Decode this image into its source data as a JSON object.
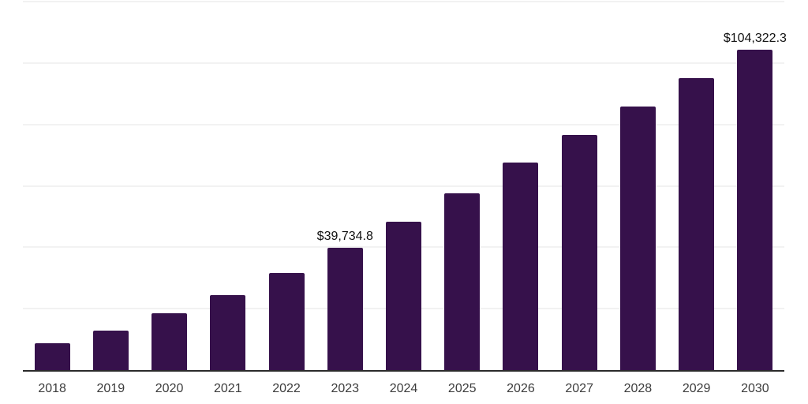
{
  "chart_data": {
    "type": "bar",
    "title": "",
    "xlabel": "",
    "ylabel": "",
    "categories": [
      "2018",
      "2019",
      "2020",
      "2021",
      "2022",
      "2023",
      "2024",
      "2025",
      "2026",
      "2027",
      "2028",
      "2029",
      "2030"
    ],
    "values": [
      8700,
      12800,
      18400,
      24300,
      31700,
      39734.8,
      48300,
      57500,
      67500,
      76500,
      85700,
      95100,
      104322.3
    ],
    "value_labels": [
      null,
      null,
      null,
      null,
      null,
      "$39,734.8",
      null,
      null,
      null,
      null,
      null,
      null,
      "$104,322.3"
    ],
    "ylim": [
      0,
      120000
    ],
    "y_gridlines": [
      20000,
      40000,
      60000,
      80000,
      100000,
      120000
    ],
    "grid": "horizontal-only, no y-axis tick labels, no legend",
    "legend": "none"
  },
  "colors": {
    "bar": "#36114B",
    "gridline": "#f2f2f2",
    "axis_line": "#2b2b2b",
    "tick_label": "#3d3d3d",
    "value_label": "#111111",
    "background": "#ffffff"
  }
}
